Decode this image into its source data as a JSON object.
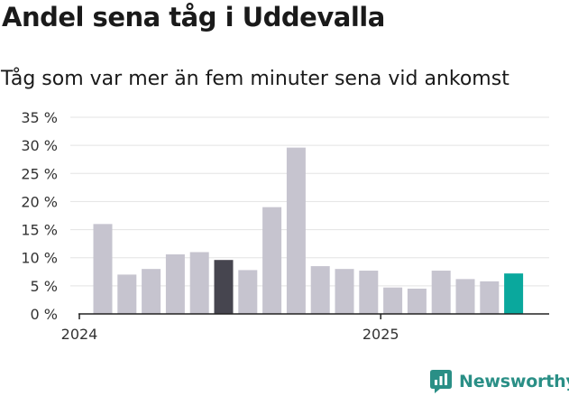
{
  "title": "Andel sena tåg i Uddevalla",
  "subtitle": "Tåg som var mer än fem minuter sena vid ankomst",
  "brand": {
    "name": "Newsworthy",
    "icon": "newsworthy-logo-icon",
    "color": "#2a8f86"
  },
  "chart_data": {
    "type": "bar",
    "title": "Andel sena tåg i Uddevalla",
    "subtitle": "Tåg som var mer än fem minuter sena vid ankomst",
    "ylim": [
      0,
      35
    ],
    "y_ticks": [
      0,
      5,
      10,
      15,
      20,
      25,
      30,
      35
    ],
    "y_tick_labels": [
      "0 %",
      "5 %",
      "10 %",
      "15 %",
      "20 %",
      "25 %",
      "30 %",
      "35 %"
    ],
    "x_tick_labels": [
      {
        "label": "2024",
        "at_index": 0
      },
      {
        "label": "2025",
        "at_index": 12
      }
    ],
    "grid": true,
    "values": [
      16,
      7,
      8,
      10.6,
      11,
      9.6,
      7.8,
      19,
      29.6,
      8.5,
      8,
      7.7,
      4.7,
      4.5,
      7.7,
      6.2,
      5.8,
      7.2
    ],
    "highlight": [
      {
        "index": 5,
        "color": "#46454f"
      },
      {
        "index": 17,
        "color": "#0aa89d"
      }
    ],
    "colors": {
      "bar": "#c6c4cf",
      "grid": "#e3e3e3",
      "axis": "#222222",
      "tick_text": "#333333"
    }
  }
}
